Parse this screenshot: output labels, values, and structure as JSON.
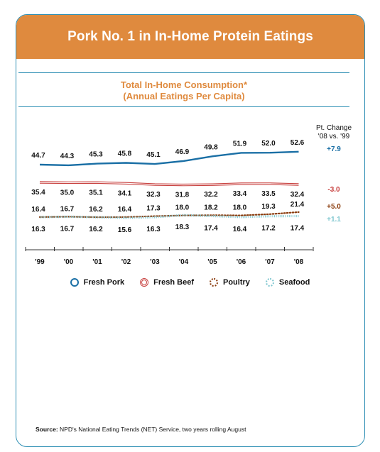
{
  "header": {
    "title": "Pork No. 1 in In-Home Protein Eatings"
  },
  "chart_data": {
    "type": "line",
    "title": "Total In-Home Consumption*",
    "subtitle": "(Annual Eatings Per Capita)",
    "categories": [
      "'99",
      "'00",
      "'01",
      "'02",
      "'03",
      "'04",
      "'05",
      "'06",
      "'07",
      "'08"
    ],
    "change_header": [
      "Pt. Change",
      "'08 vs. '99"
    ],
    "ylim": [
      10,
      60
    ],
    "grid": false,
    "legend_position": "bottom",
    "series": [
      {
        "name": "Fresh Pork",
        "values": [
          44.7,
          44.3,
          45.3,
          45.8,
          45.1,
          46.9,
          49.8,
          51.9,
          52.0,
          52.6
        ],
        "change": "+7.9",
        "color": "#1a6fa5",
        "style": "solid"
      },
      {
        "name": "Fresh Beef",
        "values": [
          35.4,
          35.0,
          35.1,
          34.1,
          32.3,
          31.8,
          32.2,
          33.4,
          33.5,
          32.4
        ],
        "change": "-3.0",
        "color": "#c8413f",
        "style": "double"
      },
      {
        "name": "Poultry",
        "values": [
          16.4,
          16.7,
          16.2,
          16.4,
          17.3,
          18.0,
          18.2,
          18.0,
          19.3,
          21.4
        ],
        "change": "+5.0",
        "color": "#8a3b0c",
        "style": "dotted"
      },
      {
        "name": "Seafood",
        "values": [
          16.3,
          16.7,
          16.2,
          15.6,
          16.3,
          18.3,
          17.4,
          16.4,
          17.2,
          17.4
        ],
        "change": "+1.1",
        "color": "#7ec6cf",
        "style": "dotted-light"
      }
    ]
  },
  "source": {
    "label": "Source:",
    "text": "NPD's National Eating Trends (NET) Service, two years rolling August"
  }
}
